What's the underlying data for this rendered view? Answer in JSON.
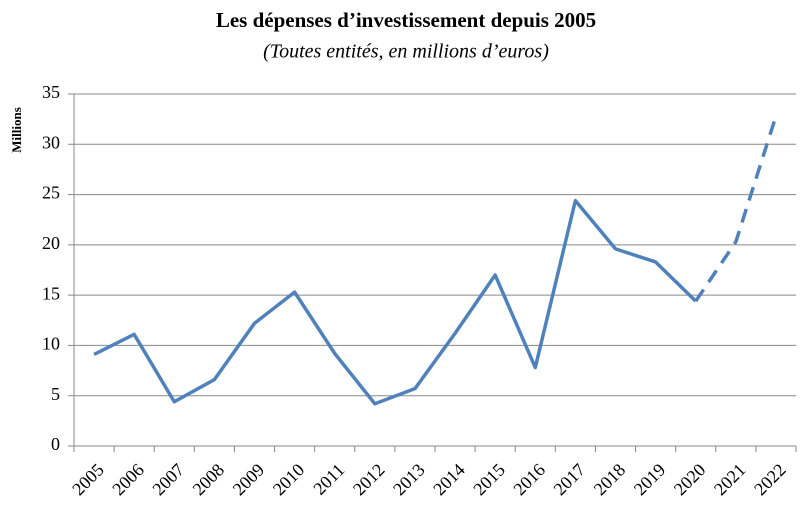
{
  "chart_data": {
    "type": "line",
    "title": "Les dépenses d’investissement depuis 2005",
    "subtitle": "(Toutes entités, en millions d’euros)",
    "y_label": "Millions",
    "categories": [
      "2005",
      "2006",
      "2007",
      "2008",
      "2009",
      "2010",
      "2011",
      "2012",
      "2013",
      "2014",
      "2015",
      "2016",
      "2017",
      "2018",
      "2019",
      "2020",
      "2021",
      "2022"
    ],
    "series": [
      {
        "color": "#4f81bd",
        "dashed": false,
        "values": [
          9.1,
          11.1,
          4.4,
          6.6,
          12.2,
          15.3,
          9.2,
          4.2,
          5.7,
          11.2,
          17.0,
          7.8,
          24.4,
          19.6,
          18.3,
          14.4,
          null,
          null
        ]
      },
      {
        "color": "#4f81bd",
        "dashed": true,
        "values": [
          null,
          null,
          null,
          null,
          null,
          null,
          null,
          null,
          null,
          null,
          null,
          null,
          null,
          null,
          null,
          14.4,
          20.3,
          32.8
        ]
      }
    ],
    "ylim": [
      0,
      35
    ],
    "yticks": [
      0,
      5,
      10,
      15,
      20,
      25,
      30,
      35
    ],
    "grid": true
  }
}
